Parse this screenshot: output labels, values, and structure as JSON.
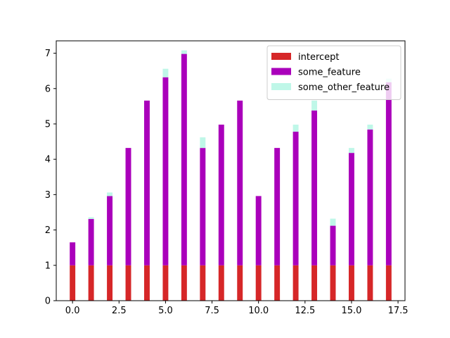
{
  "chart_data": {
    "type": "bar",
    "stacked": true,
    "title": "",
    "xlabel": "",
    "ylabel": "",
    "x": [
      0,
      1,
      2,
      3,
      4,
      5,
      6,
      7,
      8,
      9,
      10,
      11,
      12,
      13,
      14,
      15,
      16,
      17
    ],
    "xlim": [
      -0.875,
      17.875
    ],
    "ylim": [
      0,
      7.35
    ],
    "xticks": [
      0.0,
      2.5,
      5.0,
      7.5,
      10.0,
      12.5,
      15.0,
      17.5
    ],
    "xtick_labels": [
      "0.0",
      "2.5",
      "5.0",
      "7.5",
      "10.0",
      "12.5",
      "15.0",
      "17.5"
    ],
    "yticks": [
      0,
      1,
      2,
      3,
      4,
      5,
      6,
      7
    ],
    "ytick_labels": [
      "0",
      "1",
      "2",
      "3",
      "4",
      "5",
      "6",
      "7"
    ],
    "grid": false,
    "legend_position": "top-right",
    "series": [
      {
        "name": "intercept",
        "color": "#d62728",
        "values": [
          1,
          1,
          1,
          1,
          1,
          1,
          1,
          1,
          1,
          1,
          1,
          1,
          1,
          1,
          1,
          1,
          1,
          1
        ]
      },
      {
        "name": "some_feature",
        "color": "#aa00bb",
        "values": [
          0.65,
          1.31,
          1.96,
          3.32,
          4.66,
          5.32,
          5.98,
          3.32,
          3.98,
          4.66,
          1.96,
          3.32,
          3.78,
          4.38,
          1.12,
          3.18,
          3.84,
          5.18
        ]
      },
      {
        "name": "some_other_feature",
        "color": "#bff7e8",
        "values": [
          0.0,
          0.05,
          0.1,
          0.0,
          0.0,
          0.24,
          0.1,
          0.3,
          0.0,
          0.0,
          0.0,
          0.0,
          0.2,
          0.28,
          0.2,
          0.14,
          0.14,
          0.1
        ]
      }
    ]
  }
}
